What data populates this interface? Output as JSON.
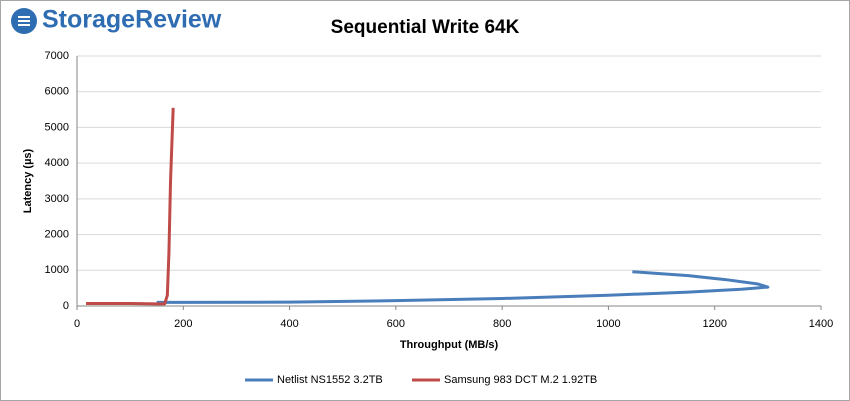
{
  "brand": "StorageReview",
  "chart_data": {
    "type": "line",
    "title": "Sequential Write 64K",
    "x_label": "Throughput (MB/s)",
    "y_label": "Latency (µs)",
    "xlim": [
      0,
      1400
    ],
    "xticks": [
      0,
      200,
      400,
      600,
      800,
      1000,
      1200,
      1400
    ],
    "ylim": [
      0,
      7000
    ],
    "yticks": [
      0,
      1000,
      2000,
      3000,
      4000,
      5000,
      6000,
      7000
    ],
    "grid": true,
    "legend": "bottom",
    "series": [
      {
        "name": "Netlist NS1552 3.2TB",
        "color": "#4a7ebb",
        "x": [
          150,
          200,
          400,
          600,
          800,
          1000,
          1150,
          1250,
          1300,
          1280,
          1220,
          1150,
          1045
        ],
        "values": [
          100,
          100,
          110,
          150,
          210,
          300,
          390,
          470,
          530,
          620,
          740,
          850,
          960
        ]
      },
      {
        "name": "Samsung 983 DCT M.2 1.92TB",
        "color": "#be4b48",
        "x": [
          17,
          100,
          150,
          165,
          170,
          173,
          176,
          181
        ],
        "values": [
          70,
          70,
          60,
          60,
          300,
          1500,
          3500,
          5550
        ]
      }
    ]
  }
}
